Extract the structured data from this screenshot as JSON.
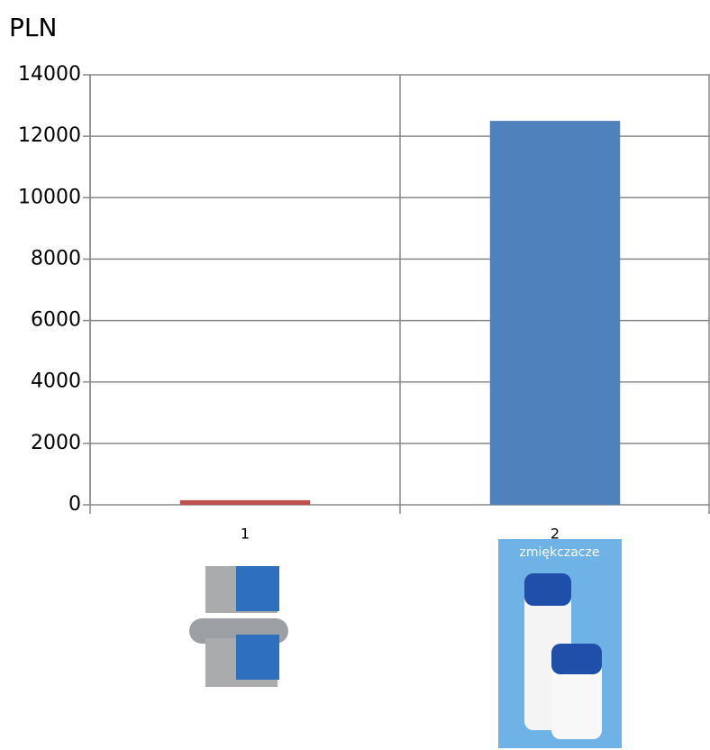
{
  "chart_data": {
    "type": "bar",
    "title": "PLN",
    "categories": [
      "1",
      "2"
    ],
    "values": [
      150,
      12500
    ],
    "colors": [
      "#c0504d",
      "#4f81bd"
    ],
    "ylim": [
      0,
      14000
    ],
    "yticks": [
      0,
      2000,
      4000,
      6000,
      8000,
      10000,
      12000,
      14000
    ],
    "grid": true,
    "annotations": [
      "zmiękczacze"
    ]
  }
}
